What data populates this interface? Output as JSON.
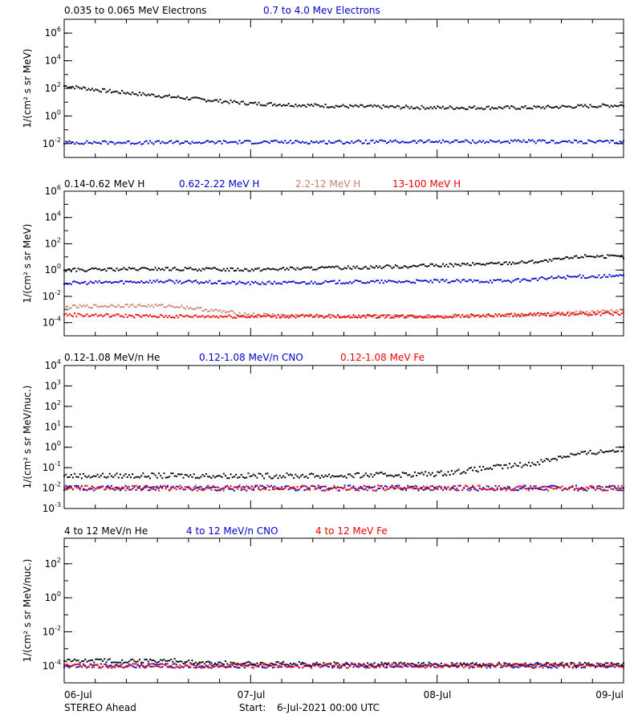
{
  "footer": {
    "spacecraft": "STEREO Ahead",
    "start_label": "Start:",
    "start_value": "6-Jul-2021 00:00 UTC"
  },
  "x_axis": {
    "ticks": [
      "06-Jul",
      "07-Jul",
      "08-Jul",
      "09-Jul"
    ]
  },
  "chart_data": [
    {
      "type": "scatter",
      "log_y": true,
      "ylabel": "1/(cm² s sr MeV)",
      "ylim_exp": [
        -3,
        7
      ],
      "ytick_exps": [
        -2,
        0,
        2,
        4,
        6
      ],
      "xlim_days": [
        0,
        3
      ],
      "series": [
        {
          "name": "0.035 to 0.065 MeV Electrons",
          "color": "#000000",
          "x": [
            0,
            0.25,
            0.5,
            0.75,
            1.0,
            1.5,
            2.0,
            2.5,
            3.0
          ],
          "y": [
            150,
            60,
            30,
            15,
            8,
            5,
            4,
            4,
            6
          ]
        },
        {
          "name": "0.7 to 4.0 Mev Electrons",
          "color": "#0000cc",
          "x": [
            0,
            0.5,
            1.0,
            1.5,
            2.0,
            2.5,
            3.0
          ],
          "y": [
            0.012,
            0.012,
            0.013,
            0.013,
            0.014,
            0.014,
            0.013
          ]
        }
      ]
    },
    {
      "type": "scatter",
      "log_y": true,
      "ylabel": "1/(cm² s sr MeV)",
      "ylim_exp": [
        -5,
        6
      ],
      "ytick_exps": [
        -4,
        -2,
        0,
        2,
        4,
        6
      ],
      "xlim_days": [
        0,
        3
      ],
      "series": [
        {
          "name": "0.14-0.62 MeV H",
          "color": "#000000",
          "x": [
            0,
            0.5,
            1.0,
            1.5,
            2.0,
            2.3,
            2.6,
            2.8,
            3.0
          ],
          "y": [
            1.0,
            1.2,
            1.1,
            1.5,
            2.2,
            3,
            5,
            12,
            10
          ]
        },
        {
          "name": "0.62-2.22 MeV H",
          "color": "#0000cc",
          "x": [
            0,
            0.5,
            1.0,
            1.5,
            2.0,
            2.4,
            2.7,
            3.0
          ],
          "y": [
            0.1,
            0.14,
            0.1,
            0.12,
            0.14,
            0.15,
            0.3,
            0.35
          ]
        },
        {
          "name": "2.2-12 MeV H",
          "color": "#c8826e",
          "x": [
            0,
            0.3,
            0.6,
            0.75,
            1.0,
            1.5,
            2.0,
            2.5,
            3.0
          ],
          "y": [
            0.0015,
            0.002,
            0.0018,
            0.001,
            0.0004,
            0.0003,
            0.0003,
            0.0004,
            0.0008
          ]
        },
        {
          "name": "13-100 MeV H",
          "color": "#ee0000",
          "x": [
            0,
            0.5,
            1.0,
            1.5,
            2.0,
            2.5,
            3.0
          ],
          "y": [
            0.0004,
            0.0003,
            0.0003,
            0.0003,
            0.0003,
            0.0004,
            0.0005
          ]
        }
      ]
    },
    {
      "type": "scatter",
      "log_y": true,
      "ylabel": "1/(cm² s sr MeV/nuc.)",
      "ylim_exp": [
        -3,
        4
      ],
      "ytick_exps": [
        -3,
        -2,
        -1,
        0,
        1,
        2,
        3,
        4
      ],
      "xlim_days": [
        0,
        3
      ],
      "series": [
        {
          "name": "0.12-1.08 MeV/n He",
          "color": "#000000",
          "x": [
            0,
            0.5,
            1.0,
            1.5,
            2.0,
            2.3,
            2.5,
            2.7,
            3.0
          ],
          "y": [
            0.04,
            0.04,
            0.04,
            0.04,
            0.05,
            0.1,
            0.15,
            0.4,
            0.8
          ]
        },
        {
          "name": "0.12-1.08 MeV/n CNO",
          "color": "#0000cc",
          "x": [
            0,
            1.0,
            2.0,
            3.0
          ],
          "y": [
            0.01,
            0.01,
            0.01,
            0.01
          ]
        },
        {
          "name": "0.12-1.08 MeV Fe",
          "color": "#ee0000",
          "x": [
            0,
            1.0,
            2.0,
            3.0
          ],
          "y": [
            0.01,
            0.01,
            0.01,
            0.01
          ]
        }
      ]
    },
    {
      "type": "scatter",
      "log_y": true,
      "ylabel": "1/(cm² s sr MeV/nuc.)",
      "ylim_exp": [
        -5,
        3.5
      ],
      "ytick_exps": [
        -4,
        -2,
        0,
        2
      ],
      "xlim_days": [
        0,
        3
      ],
      "series": [
        {
          "name": "4 to 12 MeV/n He",
          "color": "#000000",
          "x": [
            0,
            0.6,
            0.7,
            1.5,
            2.5,
            3.0
          ],
          "y": [
            0.0002,
            0.0002,
            0.00015,
            0.00012,
            0.00012,
            0.00012
          ]
        },
        {
          "name": "4 to 12 MeV/n CNO",
          "color": "#0000cc",
          "x": [
            0,
            1.0,
            2.0,
            3.0
          ],
          "y": [
            0.0001,
            0.0001,
            0.0001,
            0.0001
          ]
        },
        {
          "name": "4 to 12 MeV Fe",
          "color": "#ee0000",
          "x": [
            0,
            3.0
          ],
          "y": [
            0.0001,
            0.0001
          ]
        }
      ]
    }
  ]
}
